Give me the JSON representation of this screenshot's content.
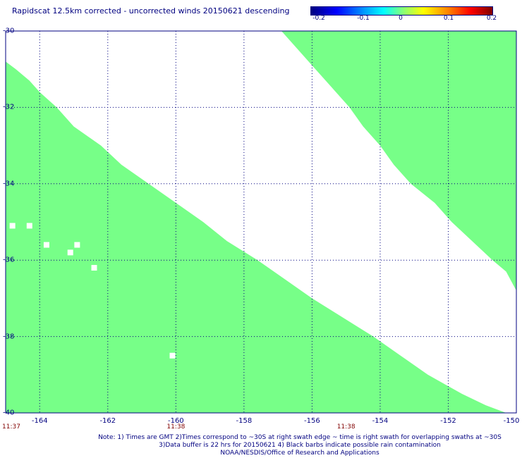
{
  "title": "Rapidscat 12.5km corrected - uncorrected winds 20150621 descending",
  "colorbar": {
    "labels": [
      "-0.2",
      "-0.1",
      "0",
      "0.1",
      "0.2"
    ],
    "values": [
      -0.2,
      -0.1,
      0,
      0.1,
      0.2
    ]
  },
  "chart_data": {
    "type": "heatmap",
    "xlim": [
      -165,
      -150
    ],
    "ylim": [
      -40,
      -30
    ],
    "x_ticks": [
      -164,
      -162,
      -160,
      -158,
      -156,
      -154,
      -152,
      -150
    ],
    "x_tick_labels": [
      "-164",
      "-162",
      "-160",
      "-158",
      "-156",
      "-154",
      "-152",
      "-150"
    ],
    "y_ticks": [
      -32,
      -34,
      -36,
      -38,
      -40,
      -30
    ],
    "y_tick_labels": [
      "-32",
      "-34",
      "-36",
      "-38",
      "-40",
      "-30"
    ],
    "grid": true,
    "swath_color": "#77ff88",
    "swath_value": 0,
    "times": [
      {
        "label": "11:37",
        "lon": -165
      },
      {
        "label": "11:38",
        "lon": -160
      },
      {
        "label": "11:38",
        "lon": -155
      }
    ],
    "swath1_boundary": [
      [
        -30.8,
        -165.0
      ],
      [
        -31.0,
        -164.7
      ],
      [
        -31.3,
        -164.3
      ],
      [
        -31.6,
        -164.0
      ],
      [
        -32.0,
        -163.5
      ],
      [
        -32.5,
        -163.0
      ],
      [
        -33.0,
        -162.2
      ],
      [
        -33.5,
        -161.6
      ],
      [
        -34.0,
        -160.8
      ],
      [
        -34.5,
        -160.0
      ],
      [
        -35.0,
        -159.2
      ],
      [
        -35.5,
        -158.5
      ],
      [
        -36.0,
        -157.6
      ],
      [
        -36.5,
        -156.8
      ],
      [
        -37.0,
        -156.0
      ],
      [
        -37.5,
        -155.1
      ],
      [
        -38.0,
        -154.2
      ],
      [
        -38.5,
        -153.4
      ],
      [
        -39.0,
        -152.6
      ],
      [
        -39.5,
        -151.6
      ],
      [
        -39.8,
        -150.9
      ],
      [
        -40.0,
        -150.3
      ]
    ],
    "swath2_boundary": [
      [
        -30.0,
        -156.9
      ],
      [
        -30.5,
        -156.4
      ],
      [
        -31.0,
        -155.9
      ],
      [
        -31.5,
        -155.4
      ],
      [
        -32.0,
        -154.9
      ],
      [
        -32.5,
        -154.5
      ],
      [
        -33.0,
        -154.0
      ],
      [
        -33.5,
        -153.6
      ],
      [
        -34.0,
        -153.1
      ],
      [
        -34.5,
        -152.4
      ],
      [
        -35.0,
        -151.9
      ],
      [
        -35.5,
        -151.3
      ],
      [
        -36.0,
        -150.7
      ],
      [
        -36.3,
        -150.3
      ],
      [
        -36.8,
        -150.0
      ]
    ],
    "gaps": [
      [
        -35.1,
        -164.8
      ],
      [
        -35.1,
        -164.3
      ],
      [
        -35.6,
        -163.8
      ],
      [
        -35.6,
        -162.9
      ],
      [
        -35.8,
        -163.1
      ],
      [
        -36.2,
        -162.4
      ],
      [
        -38.5,
        -160.1
      ]
    ]
  },
  "notes": [
    "Note: 1) Times are GMT 2)Times correspond to ~30S at right swath edge ~ time is right swath for overlapping swaths at ~30S",
    "3)Data buffer is 22 hrs for 20150621 4) Black barbs indicate possible rain contamination",
    "NOAA/NESDIS/Office of Research and Applications"
  ]
}
